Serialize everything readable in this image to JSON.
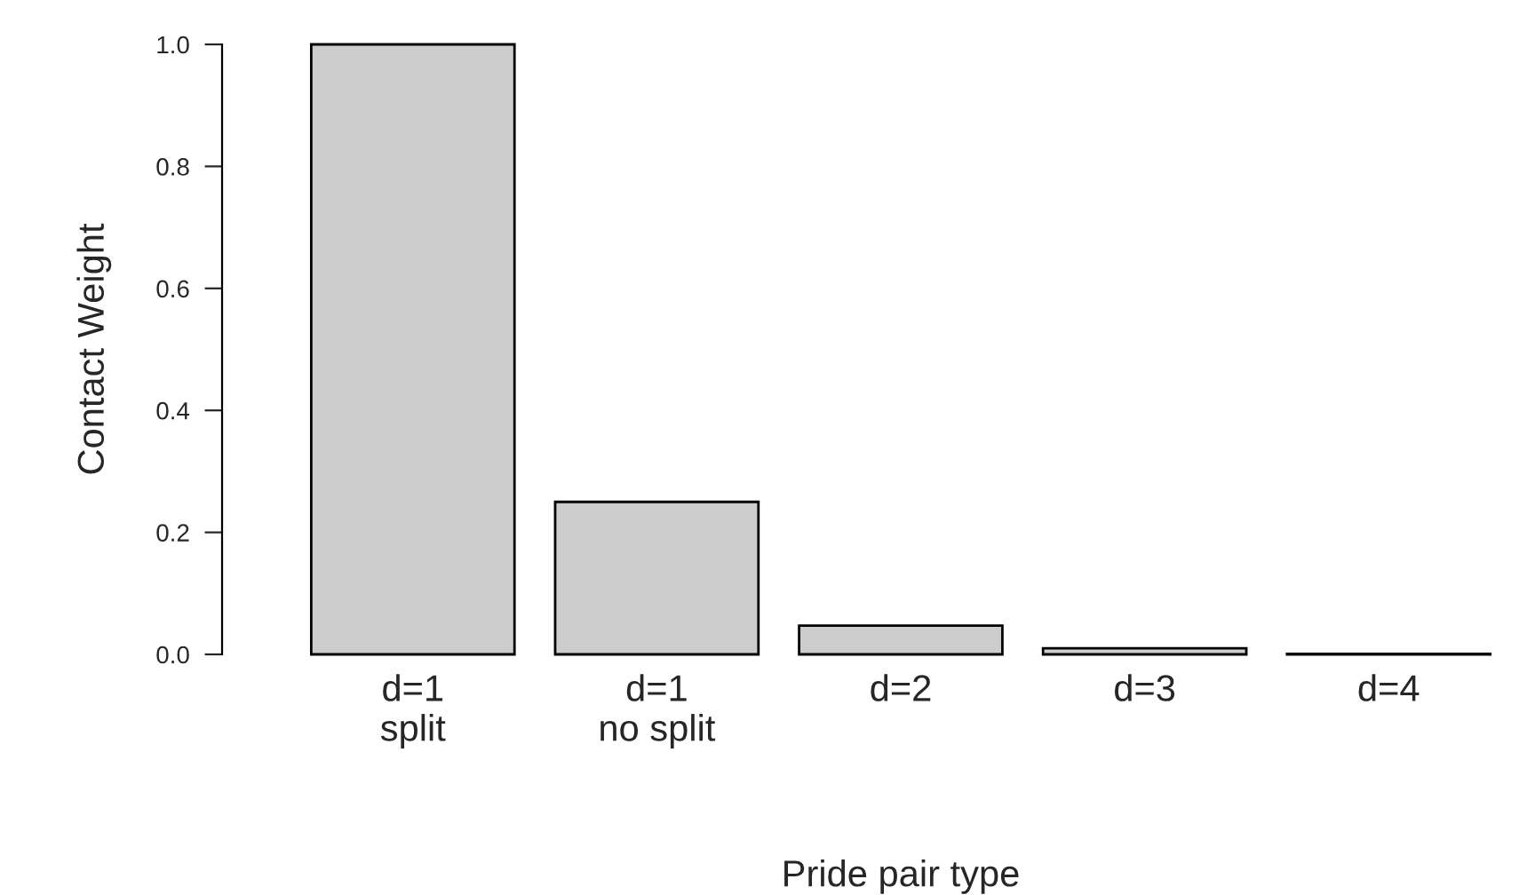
{
  "chart_data": {
    "type": "bar",
    "xlabel": "Pride pair type",
    "ylabel": "Contact Weight",
    "categories": [
      "d=1\nsplit",
      "d=1\nno split",
      "d=2",
      "d=3",
      "d=4"
    ],
    "values": [
      1.0,
      0.25,
      0.047,
      0.01,
      0.001
    ],
    "color": "#cccccc",
    "ylim": [
      0,
      1.0
    ],
    "yticks": [
      {
        "value": 0,
        "label": "0.0"
      },
      {
        "value": 0.2,
        "label": "0.2"
      },
      {
        "value": 0.4,
        "label": "0.4"
      },
      {
        "value": 0.6,
        "label": "0.6"
      },
      {
        "value": 0.8,
        "label": "0.8"
      },
      {
        "value": 1.0,
        "label": "1.0"
      }
    ],
    "grid": false
  }
}
